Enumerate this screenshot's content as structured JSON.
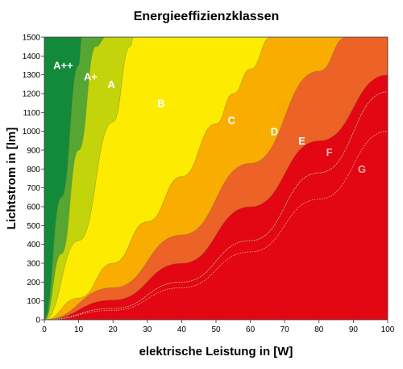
{
  "chart_data": {
    "type": "area",
    "title": "Energieeffizienzklassen",
    "xlabel": "elektrische Leistung in [W]",
    "ylabel": "Lichtstrom in [lm]",
    "xlim": [
      0,
      100
    ],
    "ylim": [
      0,
      1500
    ],
    "xticks": [
      "0",
      "10",
      "20",
      "30",
      "40",
      "50",
      "60",
      "70",
      "80",
      "90",
      "100"
    ],
    "yticks": [
      "0",
      "100",
      "200",
      "300",
      "400",
      "500",
      "600",
      "700",
      "800",
      "900",
      "1000",
      "1100",
      "1200",
      "1300",
      "1400",
      "1500"
    ],
    "grid": false,
    "legend": "none",
    "series": [
      {
        "name": "A++",
        "color": "#138a3a",
        "label_color": "#ffffff",
        "x": [
          0,
          5,
          10,
          11,
          12
        ],
        "y": [
          0,
          650,
          1350,
          1500,
          1500
        ]
      },
      {
        "name": "A+",
        "color": "#55a632",
        "label_color": "#ffffff",
        "x": [
          0,
          5,
          10,
          15,
          18
        ],
        "y": [
          0,
          350,
          900,
          1450,
          1500
        ]
      },
      {
        "name": "A",
        "color": "#c3d40a",
        "label_color": "#ffffff",
        "x": [
          0,
          10,
          20,
          25,
          26
        ],
        "y": [
          0,
          420,
          1050,
          1450,
          1500
        ]
      },
      {
        "name": "B",
        "color": "#fdec01",
        "label_color": "#ffffff",
        "x": [
          0,
          10,
          20,
          30,
          40,
          50,
          55,
          60,
          66
        ],
        "y": [
          0,
          115,
          300,
          520,
          760,
          1040,
          1200,
          1330,
          1500
        ]
      },
      {
        "name": "C",
        "color": "#f8ad00",
        "label_color": "#ffffff",
        "x": [
          0,
          20,
          40,
          60,
          80,
          88
        ],
        "y": [
          0,
          170,
          450,
          830,
          1320,
          1500
        ]
      },
      {
        "name": "D",
        "color": "#ec6227",
        "label_color": "#ffffff",
        "x": [
          0,
          20,
          40,
          60,
          80,
          100
        ],
        "y": [
          0,
          105,
          300,
          600,
          950,
          1300
        ]
      },
      {
        "name": "E",
        "color": "#e30613",
        "label_color": "#ffffff",
        "x": [
          0,
          20,
          40,
          60,
          80,
          100
        ],
        "y": [
          0,
          60,
          200,
          420,
          780,
          1210
        ]
      },
      {
        "name": "F",
        "color": "#e30613",
        "label_color": "#f5c0b8",
        "x": [
          0,
          20,
          40,
          60,
          80,
          100
        ],
        "y": [
          0,
          60,
          200,
          420,
          780,
          1210
        ]
      },
      {
        "name": "G",
        "color": "#e30613",
        "label_color": "#f0a8a0",
        "x": [
          0,
          20,
          40,
          60,
          80,
          100
        ],
        "y": [
          0,
          50,
          170,
          360,
          640,
          1000
        ]
      }
    ],
    "labels": [
      {
        "text": "A++",
        "x": 5.5,
        "y": 1330,
        "color": "#ffffff"
      },
      {
        "text": "A+",
        "x": 13.5,
        "y": 1270,
        "color": "#ffffff"
      },
      {
        "text": "A",
        "x": 19.5,
        "y": 1230,
        "color": "#ffffff"
      },
      {
        "text": "B",
        "x": 34,
        "y": 1130,
        "color": "#ffffff"
      },
      {
        "text": "C",
        "x": 54.5,
        "y": 1040,
        "color": "#ffffff"
      },
      {
        "text": "D",
        "x": 67,
        "y": 980,
        "color": "#ffffff"
      },
      {
        "text": "E",
        "x": 75,
        "y": 930,
        "color": "#ffffff"
      },
      {
        "text": "F",
        "x": 83,
        "y": 870,
        "color": "#f5c0b8"
      },
      {
        "text": "G",
        "x": 92.5,
        "y": 780,
        "color": "#f0a8a0"
      }
    ]
  }
}
